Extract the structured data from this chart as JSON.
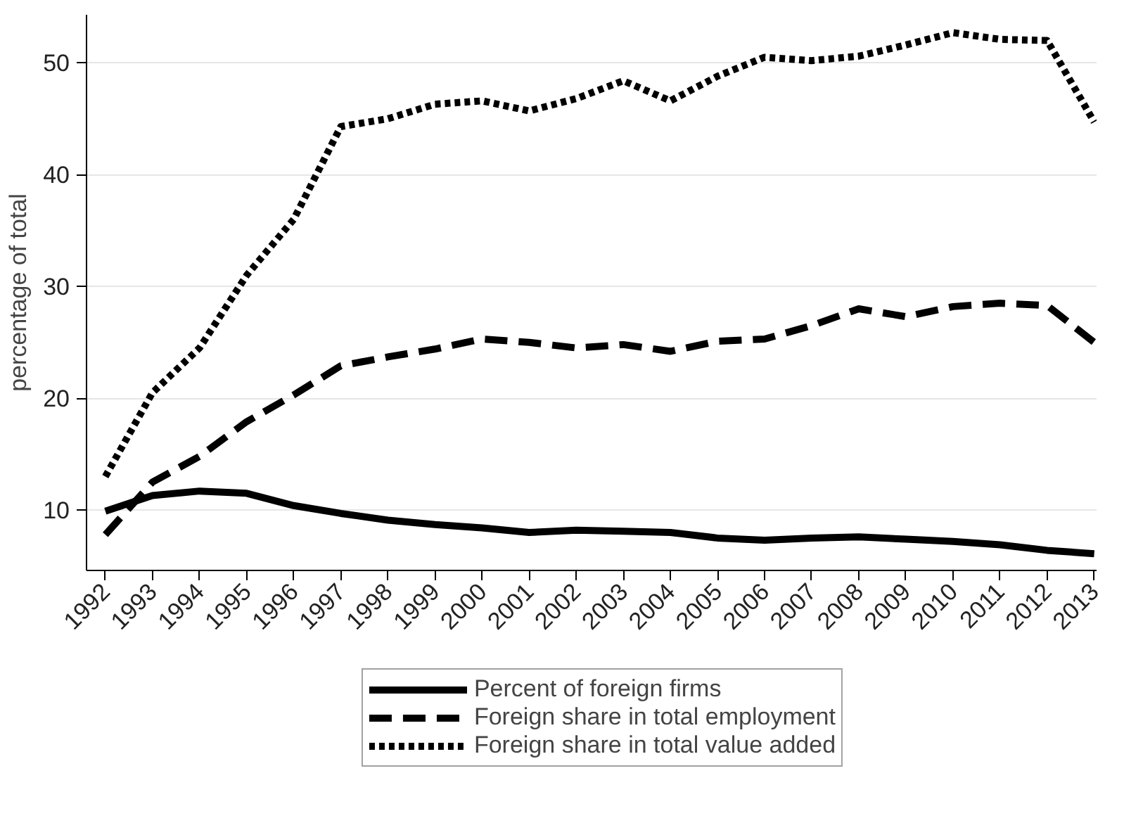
{
  "chart_data": {
    "type": "line",
    "ylabel": "percentage of total",
    "x": [
      1992,
      1993,
      1994,
      1995,
      1996,
      1997,
      1998,
      1999,
      2000,
      2001,
      2002,
      2003,
      2004,
      2005,
      2006,
      2007,
      2008,
      2009,
      2010,
      2011,
      2012,
      2013
    ],
    "xlim": [
      1991.6,
      2013.05
    ],
    "xticks": [
      1992,
      1993,
      1994,
      1995,
      1996,
      1997,
      1998,
      1999,
      2000,
      2001,
      2002,
      2003,
      2004,
      2005,
      2006,
      2007,
      2008,
      2009,
      2010,
      2011,
      2012,
      2013
    ],
    "ylim": [
      4.6,
      54.3
    ],
    "yticks": [
      10,
      20,
      30,
      40,
      50
    ],
    "grid": "y",
    "legend": "bottom",
    "series": [
      {
        "name": "Percent of foreign firms",
        "color": "#000000",
        "line_style": "solid",
        "values": [
          9.9,
          11.3,
          11.7,
          11.5,
          10.4,
          9.7,
          9.1,
          8.7,
          8.4,
          8.0,
          8.2,
          8.1,
          8.0,
          7.5,
          7.3,
          7.5,
          7.6,
          7.4,
          7.2,
          6.9,
          6.4,
          6.1
        ]
      },
      {
        "name": "Foreign share in total employment",
        "color": "#000000",
        "line_style": "dashed",
        "values": [
          7.8,
          12.5,
          14.8,
          17.9,
          20.3,
          22.9,
          23.7,
          24.4,
          25.3,
          25.0,
          24.5,
          24.8,
          24.2,
          25.1,
          25.3,
          26.5,
          28.0,
          27.3,
          28.2,
          28.5,
          28.3,
          25.0
        ]
      },
      {
        "name": "Foreign share in total value added",
        "color": "#000000",
        "line_style": "dotted",
        "values": [
          13.0,
          20.5,
          24.5,
          31.0,
          36.0,
          44.3,
          45.0,
          46.3,
          46.6,
          45.7,
          46.8,
          48.4,
          46.6,
          48.8,
          50.5,
          50.2,
          50.6,
          51.6,
          52.7,
          52.1,
          52.0,
          44.7
        ]
      }
    ]
  }
}
